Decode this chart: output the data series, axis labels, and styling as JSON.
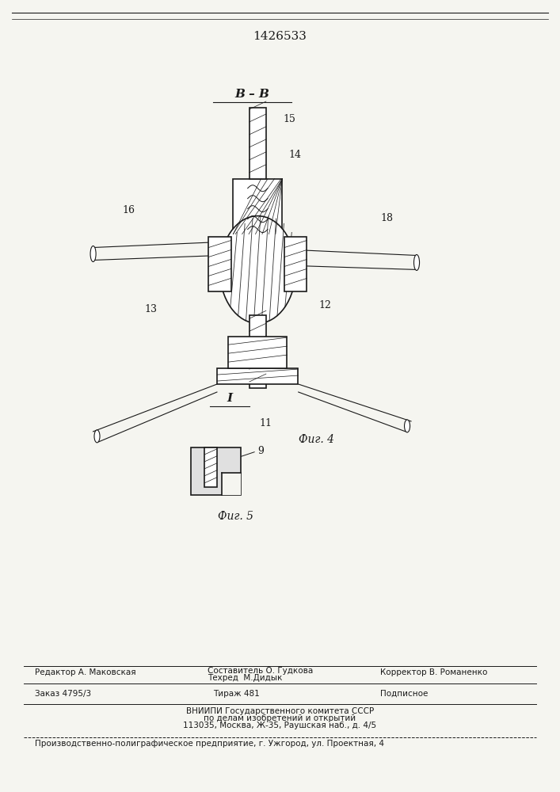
{
  "patent_number": "1426533",
  "background_color": "#f5f5f0",
  "line_color": "#1a1a1a",
  "fig4_label": "Фиг. 4",
  "fig5_label": "Фиг. 5",
  "section_label": "В – В",
  "section_label2": "I",
  "text_col1": "Редактор А. Маковская",
  "text_col2_line1": "Составитель О. Гудкова",
  "text_col2_line2": "Техред  М.Дидык",
  "text_col3": "Корректор В. Романенко",
  "text_zakaz": "Заказ 4795/3",
  "text_tirazh": "Тираж 481",
  "text_podpisnoe": "Подписное",
  "text_vniip1": "ВНИИПИ Государственного комитета СССР",
  "text_vniip2": "по делам изобретений и открытий",
  "text_vniip3": "113035, Москва, Ж-35, Раушская наб., д. 4/5",
  "text_footer": "Производственно-полиграфическое предприятие, г. Ужгород, ул. Проектная, 4"
}
